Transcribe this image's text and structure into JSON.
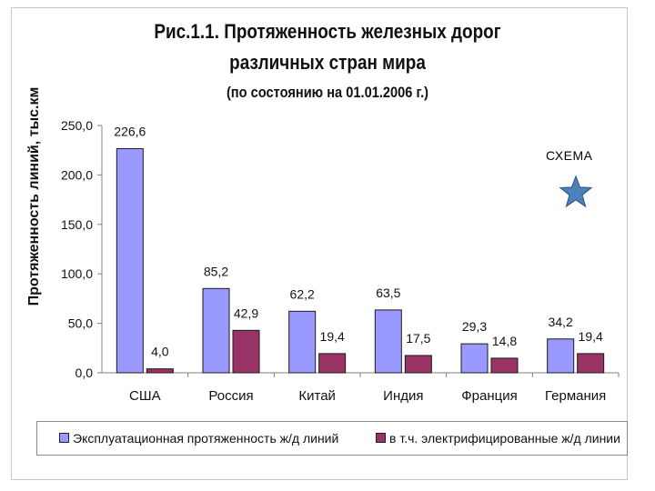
{
  "title_line1": "Рис.1.1. Протяженность железных дорог",
  "title_line2": "различных стран мира",
  "title_line3": "(по состоянию на 01.01.2006 г.)",
  "schema_label": "СХЕМА",
  "colors": {
    "series1": "#9999ff",
    "series2": "#993366",
    "axis": "#808080",
    "text": "#111111"
  },
  "chart_data": {
    "type": "bar",
    "title": "Рис.1.1. Протяженность железных дорог различных стран мира (по состоянию на 01.01.2006 г.)",
    "xlabel": "",
    "ylabel": "Протяженность линий, тыс.км",
    "ylim": [
      0,
      250
    ],
    "yticks": [
      0,
      50,
      100,
      150,
      200,
      250
    ],
    "ytick_labels": [
      "0,0",
      "50,0",
      "100,0",
      "150,0",
      "200,0",
      "250,0"
    ],
    "categories": [
      "США",
      "Россия",
      "Китай",
      "Индия",
      "Франция",
      "Германия"
    ],
    "series": [
      {
        "name": "Эксплуатационная протяженность ж/д линий",
        "values": [
          226.6,
          85.2,
          62.2,
          63.5,
          29.3,
          34.2
        ],
        "labels": [
          "226,6",
          "85,2",
          "62,2",
          "63,5",
          "29,3",
          "34,2"
        ]
      },
      {
        "name": "в т.ч. электрифицированные ж/д линии",
        "values": [
          4.0,
          42.9,
          19.4,
          17.5,
          14.8,
          19.4
        ],
        "labels": [
          "4,0",
          "42,9",
          "19,4",
          "17,5",
          "14,8",
          "19,4"
        ]
      }
    ],
    "legend": "bottom",
    "grid": false
  }
}
